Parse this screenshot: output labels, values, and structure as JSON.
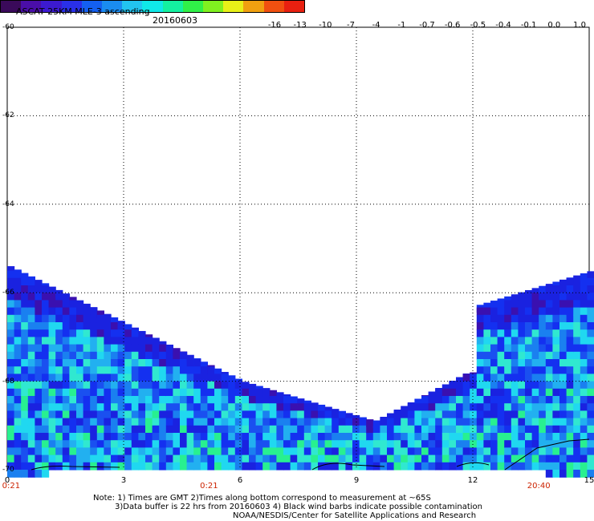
{
  "header": {
    "title": "ASCAT 25KM MLE-3 ascending",
    "date": "20160603"
  },
  "colorbar": {
    "colors": [
      "#3a0a5a",
      "#4a0ea8",
      "#3c1ad0",
      "#2a30e8",
      "#1460f0",
      "#1a8cf0",
      "#22c4f0",
      "#10e8e8",
      "#14f0a0",
      "#30f048",
      "#80f020",
      "#e8f018",
      "#f0a010",
      "#f05010",
      "#e82010"
    ],
    "labels": [
      "-16",
      "-13",
      "-10",
      "-7",
      "-4",
      "-1",
      "-0.7",
      "-0.6",
      "-0.5",
      "-0.4",
      "-0.1",
      "0.0",
      "1.0"
    ]
  },
  "map": {
    "lat_ticks": [
      "-60",
      "-62",
      "-64",
      "-66",
      "-68",
      "-70"
    ],
    "lon_ticks": [
      "0",
      "3",
      "6",
      "9",
      "12",
      "15"
    ],
    "time_labels": [
      "0:21",
      "0:21",
      "20:40"
    ]
  },
  "notes": {
    "line1": "Note: 1) Times are GMT 2)Times along bottom correspond to measurement at ~65S",
    "line2": "3)Data buffer is 22 hrs from 20160603 4) Black wind barbs indicate possible contamination",
    "line3": "NOAA/NESDIS/Center for Satellite Applications and Research"
  }
}
